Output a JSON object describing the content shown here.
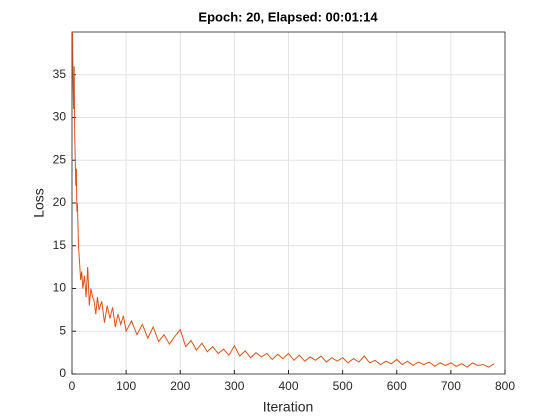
{
  "chart_data": {
    "type": "line",
    "title": "Epoch: 20, Elapsed: 00:01:14",
    "xlabel": "Iteration",
    "ylabel": "Loss",
    "color": "#d95319",
    "grid": true,
    "xlim": [
      0,
      800
    ],
    "ylim": [
      0,
      40
    ],
    "xticks": [
      0,
      100,
      200,
      300,
      400,
      500,
      600,
      700,
      800
    ],
    "yticks": [
      0,
      5,
      10,
      15,
      20,
      25,
      30,
      35
    ],
    "x": [
      1,
      2,
      3,
      4,
      5,
      6,
      7,
      8,
      9,
      10,
      12,
      14,
      16,
      18,
      20,
      23,
      26,
      29,
      32,
      35,
      38,
      41,
      44,
      47,
      50,
      55,
      60,
      65,
      70,
      75,
      80,
      85,
      90,
      95,
      100,
      110,
      120,
      130,
      140,
      150,
      160,
      170,
      180,
      190,
      200,
      210,
      220,
      230,
      240,
      250,
      260,
      270,
      280,
      290,
      300,
      310,
      320,
      330,
      340,
      350,
      360,
      370,
      380,
      390,
      400,
      410,
      420,
      430,
      440,
      450,
      460,
      470,
      480,
      490,
      500,
      510,
      520,
      530,
      540,
      550,
      560,
      570,
      580,
      590,
      600,
      610,
      620,
      630,
      640,
      650,
      660,
      670,
      680,
      690,
      700,
      710,
      720,
      730,
      740,
      750,
      760,
      770,
      780
    ],
    "values": [
      40,
      34,
      31,
      36,
      28,
      25,
      22,
      24,
      19,
      20,
      15,
      13,
      11,
      12,
      10,
      11.5,
      9,
      12.5,
      8,
      10,
      9,
      8.5,
      7,
      9,
      7.5,
      8.5,
      6,
      8,
      6.5,
      7.8,
      5.5,
      7,
      5.8,
      6.8,
      5,
      6.2,
      4.6,
      5.8,
      4.2,
      5.5,
      3.8,
      4.6,
      3.5,
      4.4,
      5.2,
      3.2,
      3.9,
      2.8,
      3.6,
      2.6,
      3.2,
      2.4,
      2.9,
      2.2,
      3.3,
      2.1,
      2.7,
      1.9,
      2.5,
      2.0,
      2.4,
      1.7,
      2.3,
      1.8,
      2.4,
      1.6,
      2.2,
      1.5,
      2.0,
      1.6,
      2.1,
      1.4,
      1.9,
      1.5,
      1.9,
      1.3,
      1.8,
      1.4,
      2.1,
      1.3,
      1.6,
      1.1,
      1.5,
      1.2,
      1.7,
      1.1,
      1.5,
      1.0,
      1.4,
      1.1,
      1.4,
      0.9,
      1.3,
      1.0,
      1.3,
      0.9,
      1.2,
      0.8,
      1.3,
      1.0,
      1.1,
      0.8,
      1.2
    ]
  }
}
